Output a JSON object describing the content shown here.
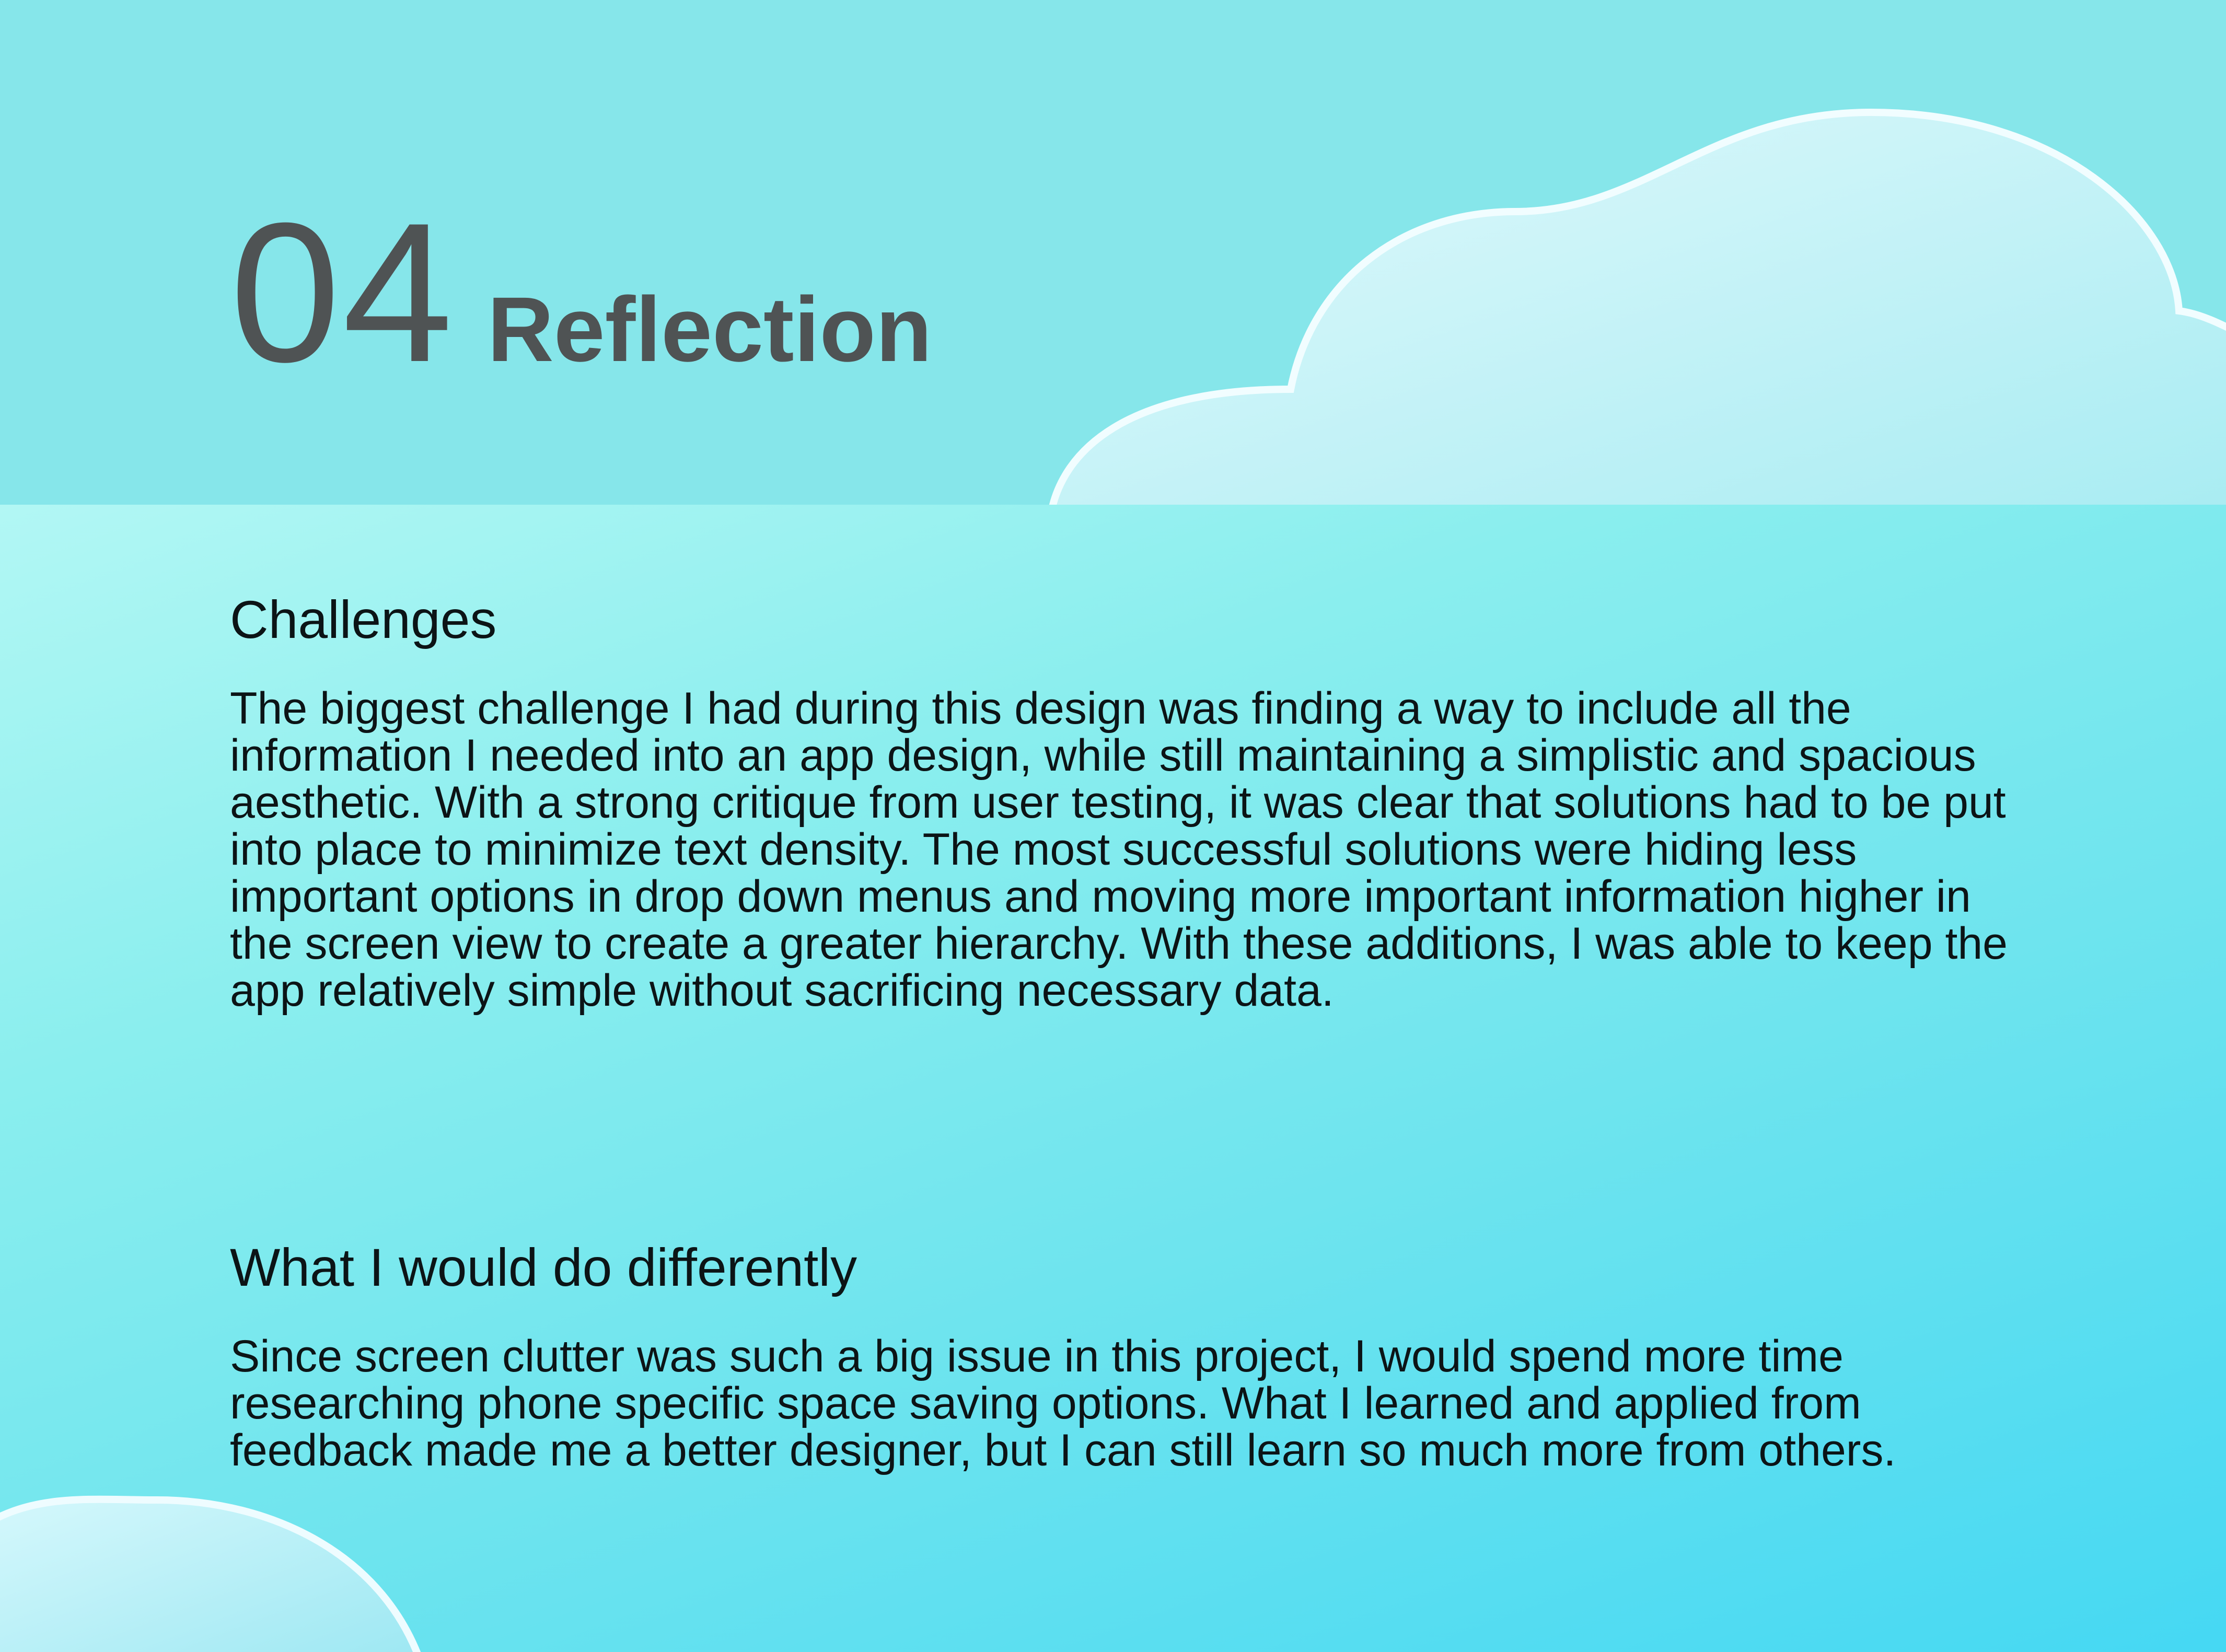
{
  "header": {
    "number": "04",
    "title": "Reflection"
  },
  "sections": {
    "challenges": {
      "heading": "Challenges",
      "body": "The biggest challenge I had during this design was finding a way to include all the information I needed into an app design, while still maintaining a simplistic and spacious aesthetic. With a strong critique from user testing, it was clear that solutions had to be put into place to minimize text density. The most successful solutions were hiding less important options in drop down menus and moving more important information higher in the screen view to create a greater hierarchy. With these additions, I was able to keep the app relatively simple without sacrificing necessary data."
    },
    "different": {
      "heading": "What I would do differently",
      "body": "Since screen clutter was such a big issue in this project, I would spend more time researching phone specific space saving options. What I learned and applied from feedback made me a better designer, but I can still learn so much more from others."
    }
  },
  "colors": {
    "header_background": "#86e6ea",
    "body_gradient_start": "#b2f7f4",
    "body_gradient_end": "#45d8f3",
    "title_text": "#4f5354",
    "body_text": "#0c1416"
  }
}
